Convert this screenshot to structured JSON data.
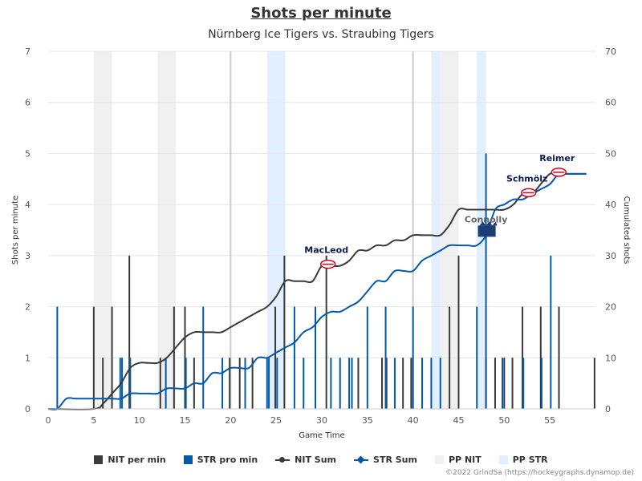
{
  "colors": {
    "nit": "#3a3a3a",
    "str": "#005aab",
    "pp_nit": "#f0f0f0",
    "pp_str": "#e2efff",
    "grid": "#e6e6e6",
    "period": "#cccccc",
    "label_nit": "#0c1a52",
    "label_str": "#666666"
  },
  "chart_data": {
    "type": "bar",
    "title": "Shots per minute",
    "subtitle": "Nürnberg Ice Tigers vs. Straubing Tigers",
    "xlabel": "Game Time",
    "ylabel": "Shots per minute",
    "y2label": "Cumulated shots",
    "xlim": [
      0,
      60
    ],
    "ylim": [
      0,
      7
    ],
    "y2lim": [
      0,
      70
    ],
    "xticks": [
      0,
      5,
      10,
      15,
      20,
      25,
      30,
      35,
      40,
      45,
      50,
      55
    ],
    "yticks": [
      0,
      1,
      2,
      3,
      4,
      5,
      6,
      7
    ],
    "y2ticks": [
      0,
      10,
      20,
      30,
      40,
      50,
      60,
      70
    ],
    "grid": true,
    "legend_position": "bottom",
    "period_lines": [
      20,
      40
    ],
    "series": [
      {
        "name": "NIT per min",
        "kind": "bar",
        "points": [
          [
            5,
            2
          ],
          [
            6,
            1
          ],
          [
            7,
            2
          ],
          [
            8.9,
            3
          ],
          [
            12.3,
            1
          ],
          [
            13.8,
            2
          ],
          [
            15,
            2
          ],
          [
            16,
            1
          ],
          [
            19.9,
            1
          ],
          [
            21,
            1
          ],
          [
            22.4,
            1
          ],
          [
            24.9,
            2
          ],
          [
            25.9,
            3
          ],
          [
            30.5,
            3
          ],
          [
            34,
            1
          ],
          [
            36.6,
            1
          ],
          [
            37.1,
            1
          ],
          [
            38.9,
            1
          ],
          [
            39.8,
            1
          ],
          [
            44,
            2
          ],
          [
            45,
            3
          ],
          [
            48,
            1
          ],
          [
            49,
            1
          ],
          [
            50,
            1
          ],
          [
            50.9,
            1
          ],
          [
            52,
            2
          ],
          [
            54,
            2
          ],
          [
            56,
            2
          ],
          [
            59.9,
            1
          ]
        ]
      },
      {
        "name": "STR pro min",
        "kind": "bar",
        "points": [
          [
            1,
            2
          ],
          [
            7.9,
            1
          ],
          [
            8.1,
            1
          ],
          [
            9,
            1
          ],
          [
            12.9,
            1
          ],
          [
            15.1,
            1
          ],
          [
            17,
            2
          ],
          [
            19.1,
            1
          ],
          [
            21.6,
            1
          ],
          [
            24,
            1
          ],
          [
            24.2,
            1
          ],
          [
            25.1,
            1
          ],
          [
            27,
            2
          ],
          [
            28,
            1
          ],
          [
            29.3,
            2
          ],
          [
            31,
            1
          ],
          [
            32,
            1
          ],
          [
            33,
            1
          ],
          [
            33.3,
            1
          ],
          [
            35,
            2
          ],
          [
            37,
            2
          ],
          [
            38,
            1
          ],
          [
            40,
            2
          ],
          [
            41,
            1
          ],
          [
            42,
            1
          ],
          [
            43,
            1
          ],
          [
            47,
            2
          ],
          [
            48,
            5
          ],
          [
            49.8,
            1
          ],
          [
            52.1,
            1
          ],
          [
            54.1,
            1
          ],
          [
            55.1,
            3
          ]
        ]
      },
      {
        "name": "NIT Sum",
        "kind": "line",
        "points": [
          [
            0,
            0
          ],
          [
            5,
            0
          ],
          [
            6,
            0.1
          ],
          [
            7,
            0.3
          ],
          [
            8,
            0.5
          ],
          [
            9,
            0.8
          ],
          [
            10,
            0.9
          ],
          [
            11,
            0.9
          ],
          [
            12,
            0.9
          ],
          [
            13,
            1
          ],
          [
            14,
            1.2
          ],
          [
            15,
            1.4
          ],
          [
            16,
            1.5
          ],
          [
            17,
            1.5
          ],
          [
            18,
            1.5
          ],
          [
            19,
            1.5
          ],
          [
            20,
            1.6
          ],
          [
            21,
            1.7
          ],
          [
            22,
            1.8
          ],
          [
            23,
            1.9
          ],
          [
            24,
            2
          ],
          [
            25,
            2.2
          ],
          [
            26,
            2.5
          ],
          [
            27,
            2.5
          ],
          [
            28,
            2.5
          ],
          [
            29,
            2.5
          ],
          [
            30,
            2.8
          ],
          [
            31,
            2.8
          ],
          [
            32,
            2.8
          ],
          [
            33,
            2.9
          ],
          [
            34,
            3.1
          ],
          [
            35,
            3.1
          ],
          [
            36,
            3.2
          ],
          [
            37,
            3.2
          ],
          [
            38,
            3.3
          ],
          [
            39,
            3.3
          ],
          [
            40,
            3.4
          ],
          [
            41,
            3.4
          ],
          [
            42,
            3.4
          ],
          [
            43,
            3.4
          ],
          [
            44,
            3.6
          ],
          [
            45,
            3.9
          ],
          [
            46,
            3.9
          ],
          [
            47,
            3.9
          ],
          [
            48,
            3.9
          ],
          [
            49,
            3.9
          ],
          [
            50,
            3.9
          ],
          [
            51,
            4
          ],
          [
            52,
            4.2
          ],
          [
            53,
            4.2
          ],
          [
            54,
            4.4
          ],
          [
            55,
            4.6
          ],
          [
            56,
            4.6
          ],
          [
            57,
            4.6
          ],
          [
            58,
            4.6
          ],
          [
            59,
            4.6
          ]
        ]
      },
      {
        "name": "STR Sum",
        "kind": "line",
        "points": [
          [
            0,
            0
          ],
          [
            1,
            0
          ],
          [
            2,
            0.2
          ],
          [
            3,
            0.2
          ],
          [
            4,
            0.2
          ],
          [
            5,
            0.2
          ],
          [
            6,
            0.2
          ],
          [
            7,
            0.2
          ],
          [
            8,
            0.2
          ],
          [
            9,
            0.3
          ],
          [
            10,
            0.3
          ],
          [
            11,
            0.3
          ],
          [
            12,
            0.3
          ],
          [
            13,
            0.4
          ],
          [
            14,
            0.4
          ],
          [
            15,
            0.4
          ],
          [
            16,
            0.5
          ],
          [
            17,
            0.5
          ],
          [
            18,
            0.7
          ],
          [
            19,
            0.7
          ],
          [
            20,
            0.8
          ],
          [
            21,
            0.8
          ],
          [
            22,
            0.8
          ],
          [
            23,
            1
          ],
          [
            24,
            1
          ],
          [
            25,
            1.1
          ],
          [
            26,
            1.2
          ],
          [
            27,
            1.3
          ],
          [
            28,
            1.5
          ],
          [
            29,
            1.6
          ],
          [
            30,
            1.8
          ],
          [
            31,
            1.9
          ],
          [
            32,
            1.9
          ],
          [
            33,
            2
          ],
          [
            34,
            2.1
          ],
          [
            35,
            2.3
          ],
          [
            36,
            2.5
          ],
          [
            37,
            2.5
          ],
          [
            38,
            2.7
          ],
          [
            39,
            2.7
          ],
          [
            40,
            2.7
          ],
          [
            41,
            2.9
          ],
          [
            42,
            3
          ],
          [
            43,
            3.1
          ],
          [
            44,
            3.2
          ],
          [
            45,
            3.2
          ],
          [
            46,
            3.2
          ],
          [
            47,
            3.2
          ],
          [
            48,
            3.4
          ],
          [
            49,
            3.9
          ],
          [
            50,
            4
          ],
          [
            51,
            4.1
          ],
          [
            52,
            4.1
          ],
          [
            53,
            4.2
          ],
          [
            54,
            4.3
          ],
          [
            55,
            4.4
          ],
          [
            56,
            4.6
          ],
          [
            57,
            4.6
          ],
          [
            58,
            4.6
          ],
          [
            59,
            4.6
          ]
        ]
      }
    ],
    "pp_nit": [
      [
        5,
        7
      ],
      [
        12,
        14
      ],
      [
        43,
        45
      ]
    ],
    "pp_str": [
      [
        24,
        26
      ],
      [
        42,
        43
      ],
      [
        47,
        48
      ]
    ],
    "annotations": [
      {
        "text": "MacLeod",
        "team": "NIT",
        "x": 30.5,
        "y": 2.8
      },
      {
        "text": "Connolly",
        "team": "STR",
        "x": 48,
        "y": 3.4
      },
      {
        "text": "Schmölz",
        "team": "NIT",
        "x": 52.5,
        "y": 4.2
      },
      {
        "text": "Reimer",
        "team": "NIT",
        "x": 55.8,
        "y": 4.6
      }
    ]
  },
  "legend": [
    {
      "label": "NIT per min",
      "type": "box",
      "color": "#3a3a3a"
    },
    {
      "label": "STR pro min",
      "type": "box",
      "color": "#005aab"
    },
    {
      "label": "NIT Sum",
      "type": "line-circle",
      "color": "#3a3a3a"
    },
    {
      "label": "STR Sum",
      "type": "line-diamond",
      "color": "#005aab"
    },
    {
      "label": "PP NIT",
      "type": "box",
      "color": "#f0f0f0"
    },
    {
      "label": "PP STR",
      "type": "box",
      "color": "#e2efff"
    }
  ],
  "credit": "©2022 GrindSa (https://hockeygraphs.dynamop.de)"
}
